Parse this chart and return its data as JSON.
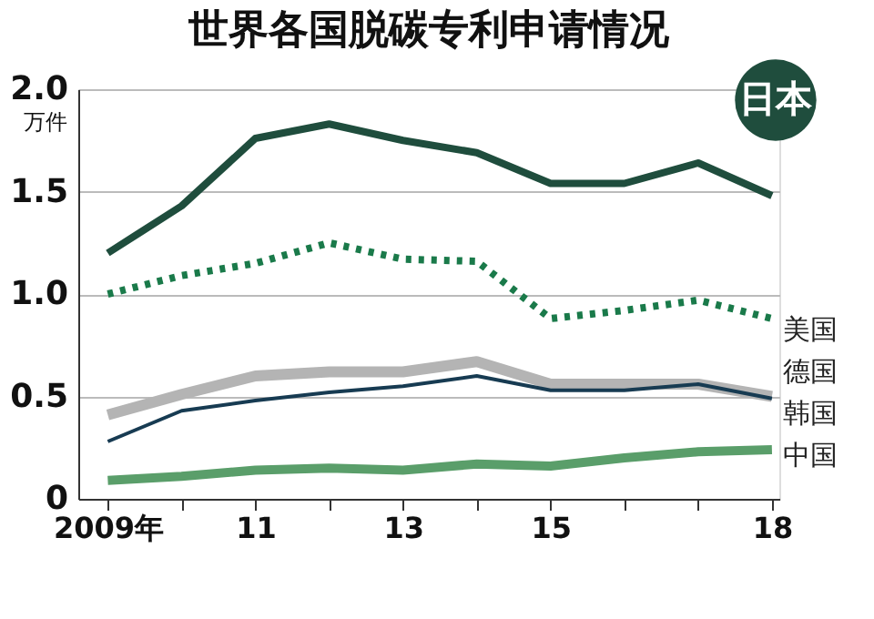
{
  "chart_data": {
    "type": "line",
    "title": "世界各国脱碳专利申请情况",
    "ylabel": "万件",
    "x": [
      2009,
      2010,
      2011,
      2012,
      2013,
      2014,
      2015,
      2016,
      2017,
      2018
    ],
    "series": [
      {
        "name": "日本",
        "color": "#1f4d3d",
        "values": [
          1.2,
          1.43,
          1.76,
          1.83,
          1.75,
          1.69,
          1.54,
          1.54,
          1.64,
          1.48
        ]
      },
      {
        "name": "美国",
        "color": "#1a7a4a",
        "line_style": "dotted",
        "values": [
          1.0,
          1.09,
          1.15,
          1.25,
          1.17,
          1.16,
          0.88,
          0.92,
          0.97,
          0.88
        ]
      },
      {
        "name": "德国",
        "color": "#b4b4b4",
        "values": [
          0.41,
          0.51,
          0.6,
          0.62,
          0.62,
          0.67,
          0.56,
          0.56,
          0.56,
          0.5
        ]
      },
      {
        "name": "韩国",
        "color": "#173b52",
        "values": [
          0.28,
          0.43,
          0.48,
          0.52,
          0.55,
          0.6,
          0.53,
          0.53,
          0.56,
          0.49
        ]
      },
      {
        "name": "中国",
        "color": "#5a9e6a",
        "values": [
          0.09,
          0.11,
          0.14,
          0.15,
          0.14,
          0.17,
          0.16,
          0.2,
          0.23,
          0.24
        ]
      }
    ],
    "xlim": [
      2008.6,
      2018.1
    ],
    "xticks": [
      {
        "value": 2009,
        "label": "2009年"
      },
      {
        "value": 2010,
        "label": null
      },
      {
        "value": 2011,
        "label": "11"
      },
      {
        "value": 2012,
        "label": null
      },
      {
        "value": 2013,
        "label": "13"
      },
      {
        "value": 2014,
        "label": null
      },
      {
        "value": 2015,
        "label": "15"
      },
      {
        "value": 2016,
        "label": null
      },
      {
        "value": 2017,
        "label": null
      },
      {
        "value": 2018,
        "label": "18"
      }
    ],
    "ylim": [
      0,
      2.0
    ],
    "yticks": [
      0,
      0.5,
      {
        "value": 1.0,
        "label": "1.0"
      },
      1.5,
      {
        "value": 2.0,
        "label": "2.0"
      }
    ],
    "grid": "y",
    "marker": "none",
    "line_style": "solid"
  }
}
